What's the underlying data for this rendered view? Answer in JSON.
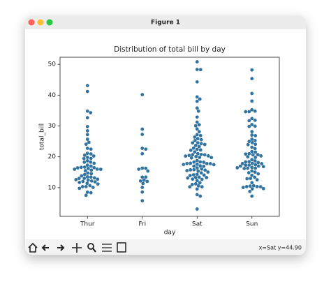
{
  "window": {
    "title": "Figure 1",
    "status": "x=Sat y=44.90"
  },
  "chart_data": {
    "type": "swarm",
    "title": "Distribution of total bill by day",
    "x_label": "day",
    "y_label": "total_bill",
    "categories": [
      "Thur",
      "Fri",
      "Sat",
      "Sun"
    ],
    "color": "#3274a1",
    "ylim": [
      0.7,
      52.3
    ],
    "yticks": [
      10,
      20,
      30,
      40,
      50
    ],
    "values": [
      [
        43.11,
        41.19,
        34.83,
        34.3,
        32.68,
        29.8,
        28.44,
        27.2,
        25.71,
        24.71,
        24.08,
        22.76,
        22.49,
        21.16,
        20.92,
        20.53,
        20.27,
        19.81,
        19.49,
        19.44,
        18.71,
        18.28,
        18.26,
        17.92,
        17.29,
        16.97,
        16.66,
        16.58,
        16.47,
        16.43,
        16.21,
        16.0,
        15.98,
        15.95,
        15.69,
        15.48,
        14.73,
        14.52,
        14.26,
        13.81,
        13.51,
        13.42,
        13.16,
        13.03,
        13.0,
        12.74,
        12.6,
        12.43,
        12.16,
        12.03,
        11.87,
        11.69,
        11.38,
        11.17,
        10.65,
        10.34,
        10.33,
        10.07,
        9.78,
        8.52,
        8.35,
        7.51
      ],
      [
        40.17,
        28.97,
        27.28,
        22.75,
        22.49,
        21.01,
        16.32,
        16.27,
        15.98,
        15.38,
        13.42,
        13.42,
        12.46,
        12.16,
        12.03,
        11.35,
        10.09,
        8.58,
        5.75
      ],
      [
        50.81,
        48.33,
        48.27,
        44.3,
        39.42,
        38.73,
        38.01,
        35.83,
        34.81,
        32.9,
        31.27,
        30.4,
        30.06,
        29.03,
        28.15,
        27.18,
        26.88,
        26.41,
        25.89,
        25.56,
        25.28,
        24.55,
        24.52,
        24.27,
        24.01,
        23.68,
        23.33,
        22.82,
        22.42,
        22.23,
        22.12,
        21.58,
        21.01,
        20.76,
        20.69,
        20.65,
        20.45,
        20.29,
        20.23,
        20.08,
        19.82,
        19.77,
        19.65,
        18.78,
        18.35,
        18.29,
        18.24,
        17.92,
        17.81,
        17.82,
        17.78,
        17.59,
        17.51,
        17.47,
        17.07,
        16.99,
        16.93,
        16.4,
        16.04,
        15.81,
        15.77,
        15.69,
        15.53,
        15.36,
        15.06,
        14.78,
        14.31,
        14.15,
        14.07,
        13.94,
        13.39,
        13.28,
        13.27,
        13.13,
        12.76,
        12.69,
        12.26,
        11.59,
        11.24,
        11.02,
        10.59,
        10.29,
        10.27,
        9.55,
        7.74,
        7.25,
        3.07
      ],
      [
        48.17,
        45.35,
        40.55,
        38.07,
        35.26,
        34.81,
        34.65,
        34.63,
        32.4,
        31.85,
        31.71,
        30.46,
        29.93,
        29.85,
        28.17,
        27.05,
        26.86,
        25.71,
        25.29,
        25.0,
        24.59,
        24.06,
        23.95,
        23.1,
        22.67,
        21.7,
        21.5,
        21.01,
        20.9,
        20.69,
        20.65,
        20.29,
        20.0,
        19.82,
        19.08,
        18.69,
        18.43,
        18.35,
        18.15,
        17.89,
        17.82,
        17.78,
        17.46,
        17.31,
        17.26,
        16.99,
        16.97,
        16.82,
        16.58,
        16.45,
        16.31,
        16.29,
        16.21,
        15.42,
        15.04,
        14.83,
        14.48,
        14.0,
        13.37,
        13.0,
        12.9,
        12.54,
        11.61,
        10.63,
        10.51,
        10.34,
        10.33,
        10.29,
        10.07,
        9.6,
        9.68,
        8.77,
        7.25
      ]
    ]
  }
}
